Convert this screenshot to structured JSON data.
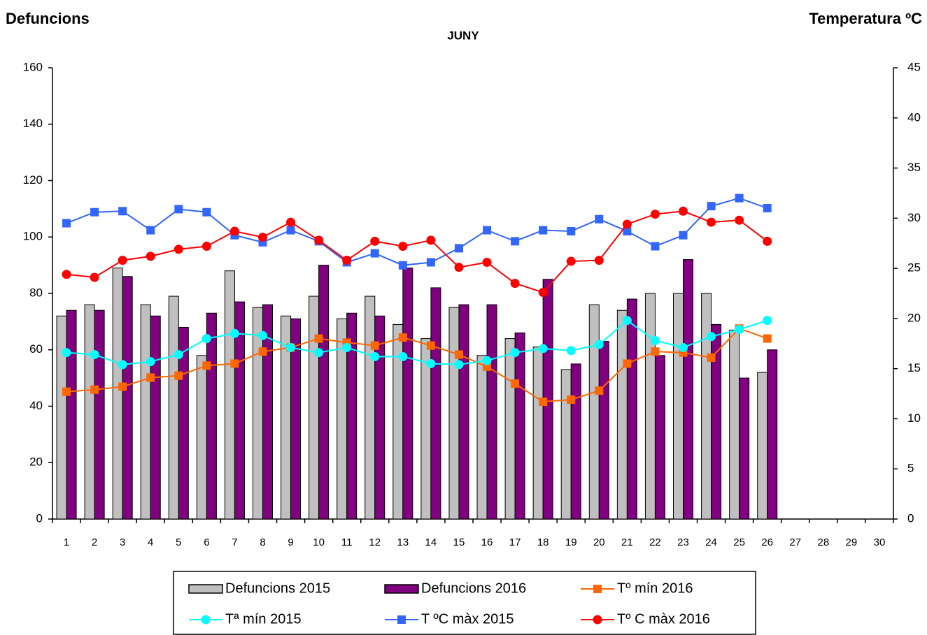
{
  "chart_data": {
    "type": "bar-line",
    "title": "JUNY",
    "y_label": "Defuncions",
    "y2_label": "Temperatura ºC",
    "categories": [
      "1",
      "2",
      "3",
      "4",
      "5",
      "6",
      "7",
      "8",
      "9",
      "10",
      "11",
      "12",
      "13",
      "14",
      "15",
      "16",
      "17",
      "18",
      "19",
      "20",
      "21",
      "22",
      "23",
      "24",
      "25",
      "26",
      "27",
      "28",
      "29",
      "30"
    ],
    "ylim": [
      0,
      160
    ],
    "yticks": [
      0,
      20,
      40,
      60,
      80,
      100,
      120,
      140,
      160
    ],
    "y2lim": [
      0,
      45
    ],
    "y2ticks": [
      0,
      5,
      10,
      15,
      20,
      25,
      30,
      35,
      40,
      45
    ],
    "grid": false,
    "series": [
      {
        "name": "Defuncions 2015",
        "kind": "bar",
        "color": "#c0c0c0",
        "values": [
          72,
          76,
          89,
          76,
          79,
          58,
          88,
          75,
          72,
          79,
          71,
          79,
          69,
          64,
          75,
          58,
          64,
          61,
          53,
          76,
          74,
          80,
          80,
          80,
          67,
          52,
          null,
          null,
          null,
          null
        ]
      },
      {
        "name": "Defuncions 2016",
        "kind": "bar",
        "color": "#800080",
        "values": [
          74,
          74,
          86,
          72,
          68,
          73,
          77,
          76,
          71,
          90,
          73,
          72,
          89,
          82,
          76,
          76,
          66,
          85,
          55,
          63,
          78,
          58,
          92,
          69,
          50,
          60,
          null,
          null,
          null,
          null
        ]
      },
      {
        "name": "Tº mín 2016",
        "kind": "line",
        "axis": "y2",
        "marker": "square",
        "color": "#ff6600",
        "values": [
          12.7,
          12.9,
          13.2,
          14.1,
          14.3,
          15.3,
          15.5,
          16.7,
          17.1,
          18.0,
          17.6,
          17.3,
          18.1,
          17.3,
          16.4,
          15.2,
          13.5,
          11.7,
          11.9,
          12.8,
          15.5,
          16.7,
          16.6,
          16.1,
          19.0,
          18.0,
          null,
          null,
          null,
          null
        ]
      },
      {
        "name": "Tª mín 2015",
        "kind": "line",
        "axis": "y2",
        "marker": "circle",
        "color": "#00ffff",
        "values": [
          16.6,
          16.4,
          15.4,
          15.7,
          16.4,
          18.0,
          18.5,
          18.3,
          17.1,
          16.6,
          17.1,
          16.2,
          16.2,
          15.5,
          15.4,
          15.8,
          16.6,
          17.0,
          16.8,
          17.4,
          19.8,
          17.8,
          17.1,
          18.2,
          18.9,
          19.8,
          null,
          null,
          null,
          null
        ]
      },
      {
        "name": "T ºC màx 2015",
        "kind": "line",
        "axis": "y2",
        "marker": "square",
        "color": "#3366ff",
        "values": [
          29.5,
          30.6,
          30.7,
          28.8,
          30.9,
          30.6,
          28.3,
          27.6,
          28.8,
          27.7,
          25.6,
          26.5,
          25.3,
          25.6,
          27.0,
          28.8,
          27.7,
          28.8,
          28.7,
          29.9,
          28.7,
          27.2,
          28.3,
          31.2,
          32.0,
          31.0,
          null,
          null,
          null,
          null
        ]
      },
      {
        "name": "Tº C màx 2016",
        "kind": "line",
        "axis": "y2",
        "marker": "circle",
        "color": "#ff0000",
        "values": [
          24.4,
          24.1,
          25.8,
          26.2,
          26.9,
          27.2,
          28.7,
          28.1,
          29.6,
          27.8,
          25.8,
          27.7,
          27.2,
          27.8,
          25.1,
          25.6,
          23.5,
          22.6,
          25.7,
          25.8,
          29.4,
          30.4,
          30.7,
          29.6,
          29.8,
          27.7,
          null,
          null,
          null,
          null
        ]
      }
    ]
  }
}
